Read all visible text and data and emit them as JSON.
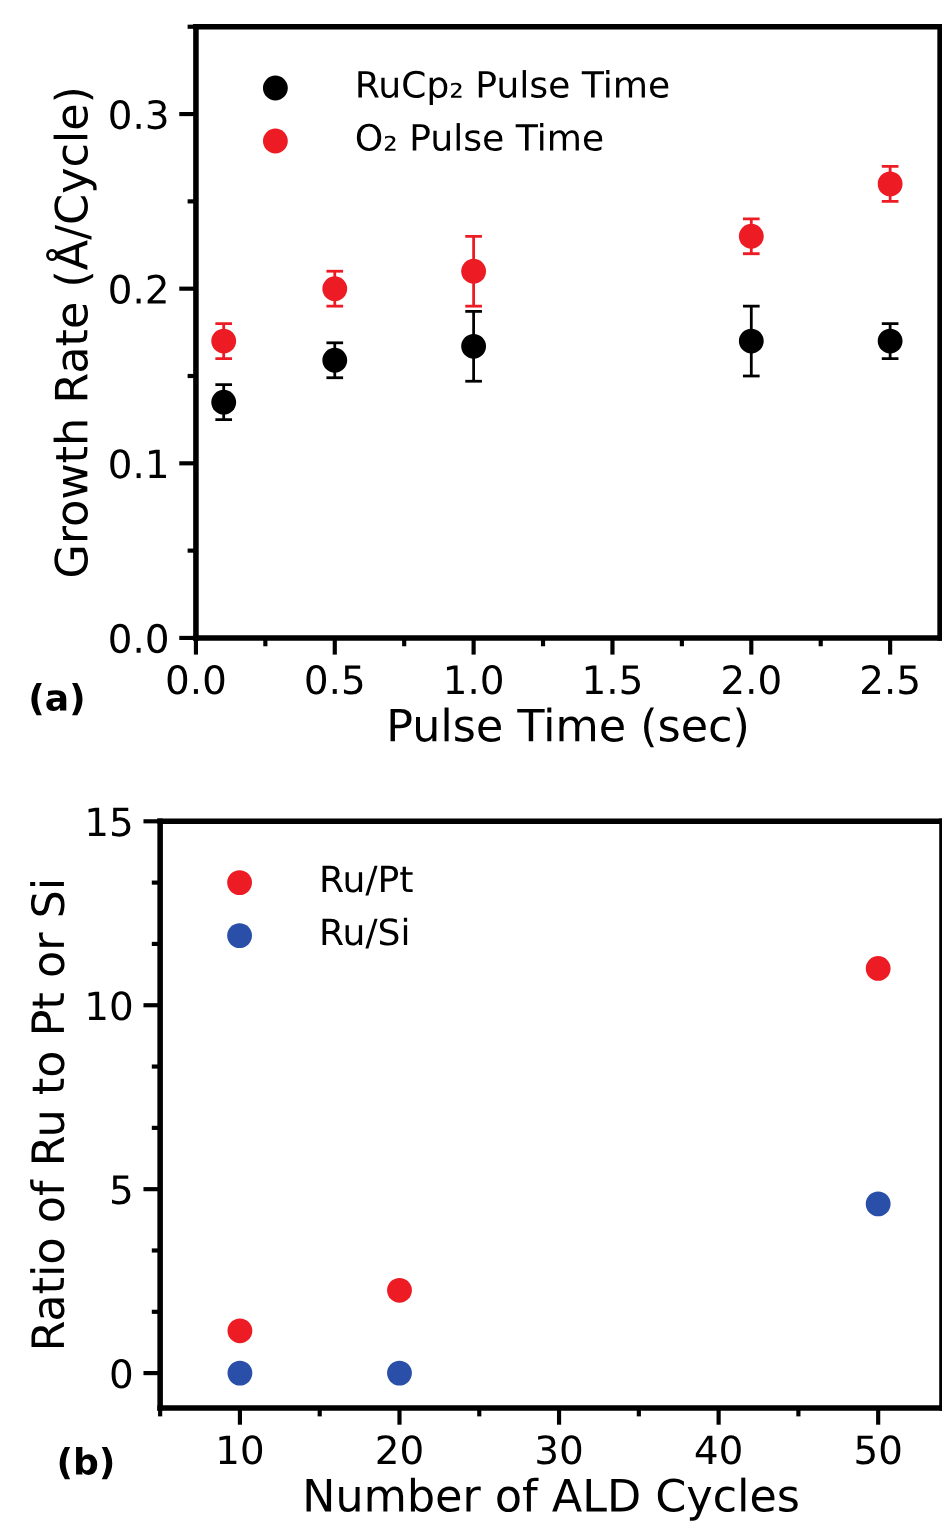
{
  "chart_data": [
    {
      "type": "scatter",
      "xlabel": "Pulse Time (sec)",
      "ylabel": "Growth Rate (Å/Cycle)",
      "annotations": [
        "(a)"
      ],
      "xlim": [
        0,
        2.68
      ],
      "ylim": [
        0,
        0.35
      ],
      "xticks": [
        {
          "value": 0,
          "label": "0.0"
        },
        0.5,
        {
          "value": 1,
          "label": "1.0"
        },
        1.5,
        {
          "value": 2,
          "label": "2.0"
        },
        2.5
      ],
      "yticks": [
        {
          "value": 0,
          "label": "0.0"
        },
        0.1,
        0.2,
        0.3
      ],
      "x": [
        0.1,
        0.5,
        1.0,
        2.0,
        2.5
      ],
      "marker": "circle",
      "legend": "top left",
      "grid": false,
      "series": [
        {
          "name": "RuCp₂ Pulse Time",
          "color": "#000000",
          "values": [
            0.135,
            0.159,
            0.167,
            0.17,
            0.17
          ],
          "errors": [
            0.01,
            0.01,
            0.02,
            0.02,
            0.01
          ]
        },
        {
          "name": "O₂ Pulse Time",
          "color": "#ed1c24",
          "values": [
            0.17,
            0.2,
            0.21,
            0.23,
            0.26
          ],
          "errors": [
            0.01,
            0.01,
            0.02,
            0.01,
            0.01
          ]
        }
      ]
    },
    {
      "type": "scatter",
      "xlabel": "Number of ALD Cycles",
      "ylabel": "Ratio of Ru to Pt or Si",
      "annotations": [
        "(b)"
      ],
      "xlim": [
        5,
        54
      ],
      "ylim": [
        -0.95,
        15
      ],
      "xticks": [
        10,
        20,
        30,
        40,
        50
      ],
      "yticks": [
        0,
        5,
        10,
        15
      ],
      "x": [
        10,
        20,
        50
      ],
      "marker": "circle",
      "legend": "top left",
      "grid": false,
      "series": [
        {
          "name": "Ru/Pt",
          "color": "#ed1c24",
          "values": [
            1.15,
            2.25,
            11.0
          ]
        },
        {
          "name": "Ru/Si",
          "color": "#2a4fa8",
          "values": [
            0.0,
            0.0,
            4.6
          ]
        }
      ]
    }
  ]
}
